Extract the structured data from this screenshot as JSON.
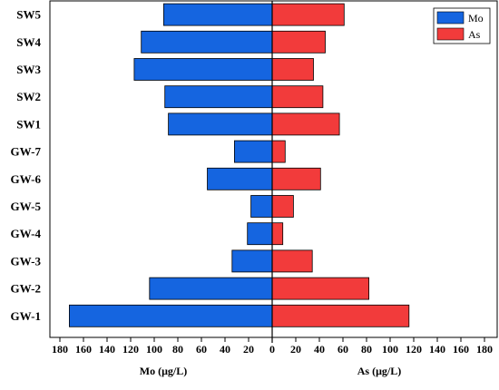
{
  "chart_data": {
    "type": "bar",
    "orientation": "horizontal-diverging",
    "categories": [
      "GW-1",
      "GW-2",
      "GW-3",
      "GW-4",
      "GW-5",
      "GW-6",
      "GW-7",
      "SW1",
      "SW2",
      "SW3",
      "SW4",
      "SW5"
    ],
    "series": [
      {
        "name": "Mo",
        "side": "left",
        "color": "#1565E0",
        "values": [
          172,
          104,
          34,
          21,
          18,
          55,
          32,
          88,
          91,
          117,
          111,
          92
        ]
      },
      {
        "name": "As",
        "side": "right",
        "color": "#F23B3B",
        "values": [
          116,
          82,
          34,
          9,
          18,
          41,
          11,
          57,
          43,
          35,
          45,
          61
        ]
      }
    ],
    "left_axis": {
      "label": "Mo (μg/L)",
      "range": [
        0,
        180
      ],
      "ticks": [
        "180",
        "160",
        "140",
        "120",
        "100",
        "80",
        "60",
        "40",
        "20",
        "0"
      ]
    },
    "right_axis": {
      "label": "As (μg/L)",
      "range": [
        0,
        180
      ],
      "ticks": [
        "20",
        "40",
        "60",
        "80",
        "100",
        "120",
        "140",
        "160",
        "180"
      ]
    },
    "legend": {
      "position": "top-right",
      "entries": [
        "Mo",
        "As"
      ]
    },
    "grid": false
  }
}
